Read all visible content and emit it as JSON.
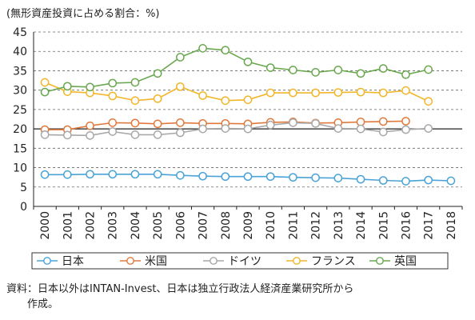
{
  "unit_label": "(無形資産投資に占める割合：%)",
  "source": {
    "line1": "資料：日本以外はINTAN-Invest、日本は独立行政法人経済産業研究所から",
    "line2": "作成。"
  },
  "chart_data": {
    "type": "line",
    "title": "",
    "xlabel": "",
    "ylabel": "",
    "ylim": [
      0,
      45
    ],
    "yticks": [
      0,
      5,
      10,
      15,
      20,
      25,
      30,
      35,
      40,
      45
    ],
    "grid": "horizontal-dashed",
    "legend_position": "bottom",
    "x": [
      "2000",
      "2001",
      "2002",
      "2003",
      "2004",
      "2005",
      "2006",
      "2007",
      "2008",
      "2009",
      "2010",
      "2011",
      "2012",
      "2013",
      "2014",
      "2015",
      "2016",
      "2017",
      "2018"
    ],
    "series": [
      {
        "name": "日本",
        "color": "#4aa3d8",
        "values": [
          8.2,
          8.2,
          8.3,
          8.3,
          8.3,
          8.3,
          8.0,
          7.8,
          7.7,
          7.7,
          7.7,
          7.5,
          7.4,
          7.3,
          7.0,
          6.7,
          6.5,
          6.8,
          6.6
        ]
      },
      {
        "name": "米国",
        "color": "#e07a3c",
        "values": [
          19.8,
          19.8,
          20.8,
          21.6,
          21.5,
          21.3,
          21.6,
          21.4,
          21.4,
          21.3,
          21.7,
          21.8,
          21.5,
          21.6,
          21.8,
          21.9,
          22.0,
          null,
          null
        ]
      },
      {
        "name": "ドイツ",
        "color": "#a8a8a8",
        "values": [
          18.5,
          18.4,
          18.3,
          19.3,
          18.5,
          18.5,
          19.0,
          20.0,
          20.1,
          20.0,
          21.0,
          21.6,
          21.4,
          20.1,
          20.0,
          19.2,
          19.8,
          20.1,
          null
        ]
      },
      {
        "name": "フランス",
        "color": "#f2b62a",
        "values": [
          32.0,
          29.6,
          29.3,
          28.5,
          27.3,
          27.8,
          30.9,
          28.6,
          27.3,
          27.5,
          29.3,
          29.3,
          29.3,
          29.4,
          29.5,
          29.3,
          29.9,
          27.1,
          null
        ]
      },
      {
        "name": "英国",
        "color": "#6aa84f",
        "values": [
          29.5,
          31.0,
          30.8,
          31.8,
          32.0,
          34.3,
          38.5,
          40.8,
          40.3,
          37.3,
          35.8,
          35.2,
          34.6,
          35.2,
          34.3,
          35.6,
          34.0,
          35.3,
          null
        ]
      }
    ]
  }
}
